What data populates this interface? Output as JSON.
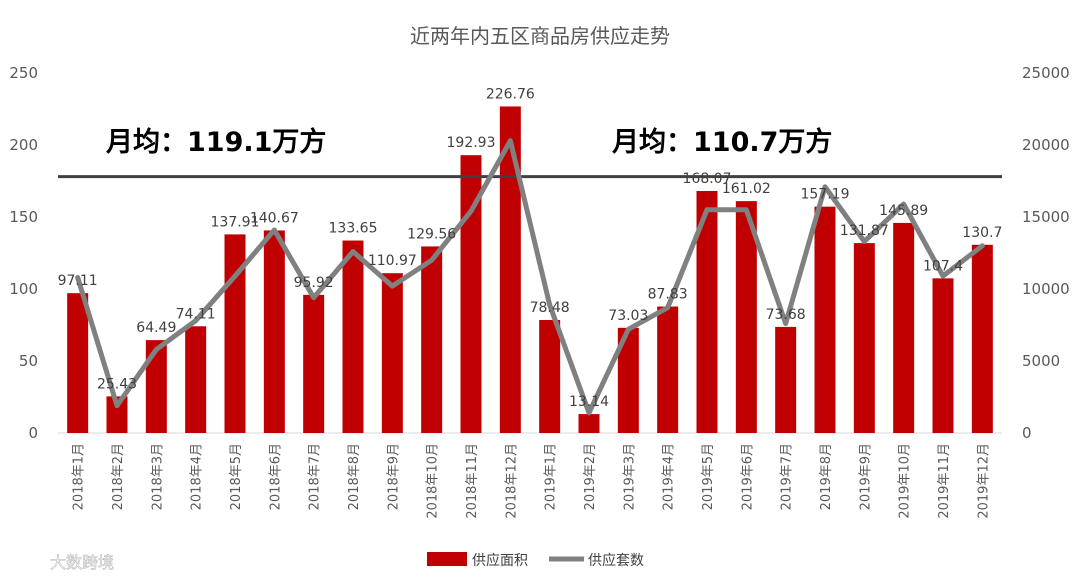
{
  "chart_data": {
    "type": "bar",
    "title": "近两年内五区商品房供应走势",
    "categories": [
      "2018年1月",
      "2018年2月",
      "2018年3月",
      "2018年4月",
      "2018年5月",
      "2018年6月",
      "2018年7月",
      "2018年8月",
      "2018年9月",
      "2018年10月",
      "2018年11月",
      "2018年12月",
      "2019年1月",
      "2019年2月",
      "2019年3月",
      "2019年4月",
      "2019年5月",
      "2019年6月",
      "2019年7月",
      "2019年8月",
      "2019年9月",
      "2019年10月",
      "2019年11月",
      "2019年12月"
    ],
    "series": [
      {
        "name": "供应面积",
        "type": "bar",
        "axis": "left",
        "color": "#c00000",
        "values": [
          97.11,
          25.43,
          64.49,
          74.11,
          137.91,
          140.67,
          95.92,
          133.65,
          110.97,
          129.56,
          192.93,
          226.76,
          78.48,
          13.14,
          73.03,
          87.83,
          168.07,
          161.02,
          73.68,
          157.19,
          131.87,
          145.89,
          107.4,
          130.7
        ],
        "labels": [
          "97.11",
          "25.43",
          "64.49",
          "74.11",
          "137.91",
          "140.67",
          "95.92",
          "133.65",
          "110.97",
          "129.56",
          "192.93",
          "226.76",
          "78.48",
          "13.14",
          "73.03",
          "87.83",
          "168.07",
          "161.02",
          "73.68",
          "157.19",
          "131.87",
          "145.89",
          "107.4",
          "130.7"
        ]
      },
      {
        "name": "供应套数",
        "type": "line",
        "axis": "right",
        "color": "#808080",
        "values": [
          10800,
          1900,
          5800,
          7800,
          10900,
          14100,
          9400,
          12600,
          10200,
          12000,
          15400,
          20300,
          8900,
          1400,
          7200,
          8700,
          15500,
          15500,
          7600,
          17100,
          13300,
          15900,
          10900,
          13000
        ]
      }
    ],
    "y_left": {
      "min": 0,
      "max": 250,
      "ticks": [
        "0",
        "50",
        "100",
        "150",
        "200",
        "250"
      ]
    },
    "y_right": {
      "min": 0,
      "max": 25000,
      "ticks": [
        "0",
        "5000",
        "10000",
        "15000",
        "20000",
        "25000"
      ]
    },
    "reference_line": {
      "value": 178,
      "axis": "left",
      "color": "#404040"
    },
    "annotations": [
      "月均：119.1万方",
      "月均：110.7万方"
    ],
    "legend_position": "bottom",
    "grid": false
  },
  "watermark": {
    "text": "大数跨境"
  }
}
